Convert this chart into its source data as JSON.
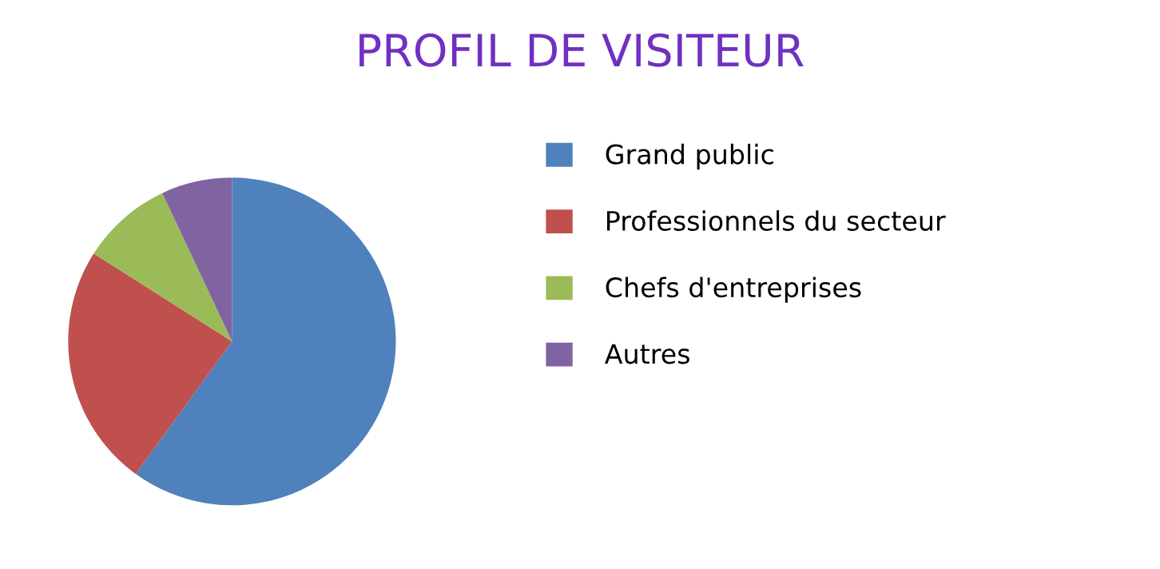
{
  "chart_data": {
    "type": "pie",
    "title": "PROFIL DE VISITEUR",
    "categories": [
      "Grand public",
      "Professionnels du secteur",
      "Chefs d'entreprises",
      "Autres"
    ],
    "values": [
      60,
      24,
      9,
      7
    ],
    "colors": [
      "#4f81bd",
      "#c0504d",
      "#9bbb59",
      "#8064a2"
    ],
    "legend": "right"
  }
}
